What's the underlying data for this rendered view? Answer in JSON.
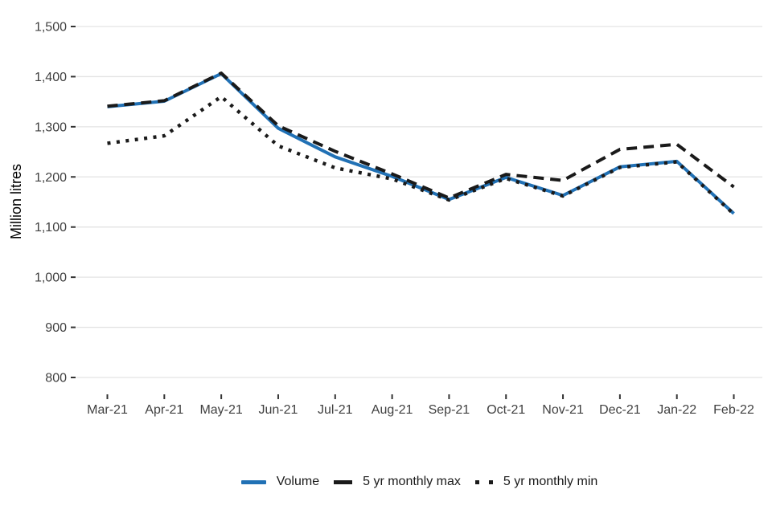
{
  "chart_data": {
    "type": "line",
    "title": "",
    "xlabel": "",
    "ylabel": "Million litres",
    "categories": [
      "Mar-21",
      "Apr-21",
      "May-21",
      "Jun-21",
      "Jul-21",
      "Aug-21",
      "Sep-21",
      "Oct-21",
      "Nov-21",
      "Dec-21",
      "Jan-22",
      "Feb-22"
    ],
    "series": [
      {
        "name": "Volume",
        "line_style": "solid",
        "color": "#2171b5",
        "values": [
          1340,
          1351,
          1406,
          1297,
          1240,
          1201,
          1155,
          1199,
          1163,
          1220,
          1231,
          1127
        ]
      },
      {
        "name": "5 yr monthly max",
        "line_style": "dashed",
        "color": "#1a1a1a",
        "values": [
          1341,
          1352,
          1407,
          1302,
          1251,
          1206,
          1158,
          1205,
          1193,
          1255,
          1265,
          1180
        ]
      },
      {
        "name": "5 yr monthly min",
        "line_style": "dotted",
        "color": "#1a1a1a",
        "values": [
          1267,
          1282,
          1360,
          1262,
          1218,
          1196,
          1154,
          1197,
          1162,
          1219,
          1230,
          1126
        ]
      }
    ],
    "ylim": [
      765,
      1535
    ],
    "yticks": [
      800,
      900,
      1000,
      1100,
      1200,
      1300,
      1400,
      1500
    ],
    "ytick_labels": [
      "800",
      "900",
      "1,000",
      "1,100",
      "1,200",
      "1,300",
      "1,400",
      "1,500"
    ],
    "grid": "horizontal-only",
    "legend_position": "bottom-center"
  },
  "legend": {
    "items": [
      {
        "label": "Volume",
        "swatch": "solid-line",
        "color": "#2171b5"
      },
      {
        "label": "5 yr monthly max",
        "swatch": "dash",
        "color": "#1a1a1a"
      },
      {
        "label": "5 yr monthly min",
        "swatch": "dots",
        "color": "#1a1a1a"
      }
    ]
  },
  "colors": {
    "background": "#ffffff",
    "gridline": "#e3e3e3",
    "tick_mark": "#333333",
    "tick_label": "#404040",
    "axis_title": "#000000",
    "volume_blue": "#2171b5",
    "line_black": "#1a1a1a"
  }
}
